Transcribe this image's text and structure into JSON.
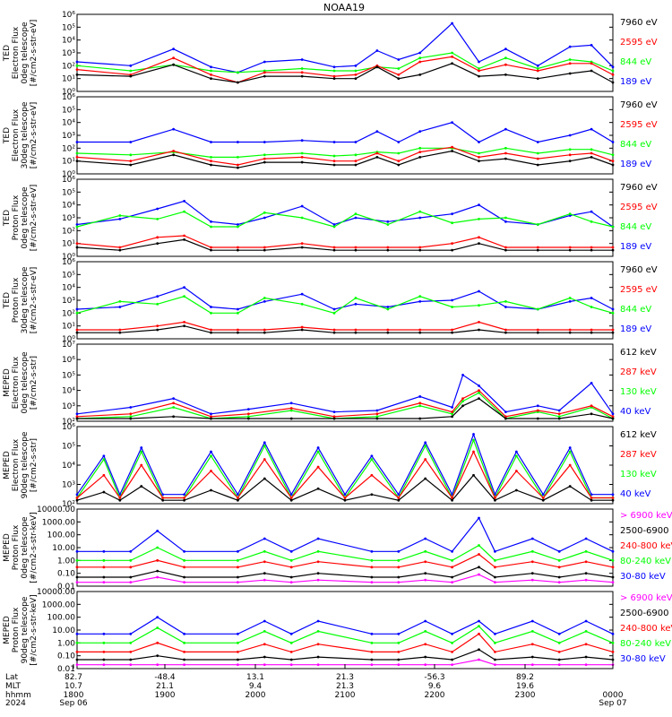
{
  "title": "NOAA19",
  "colors": {
    "black": "#000000",
    "red": "#ff0000",
    "green": "#00ff00",
    "blue": "#0000ff",
    "magenta": "#ff00ff"
  },
  "chart_data": [
    {
      "type": "line",
      "ylabel": [
        "TED",
        "Electron Flux",
        "0deg telescope",
        "[#/cm2-s-str-eV]"
      ],
      "yscale": "log",
      "yticks": [
        "10⁰",
        "10¹",
        "10²",
        "10³",
        "10⁴",
        "10⁵",
        "10⁶"
      ],
      "ylim": [
        1,
        1000000
      ],
      "series": [
        {
          "name": "7960 eV",
          "color": "black"
        },
        {
          "name": "2595 eV",
          "color": "red"
        },
        {
          "name": "844 eV",
          "color": "green"
        },
        {
          "name": "189 eV",
          "color": "blue"
        }
      ],
      "x": [
        0,
        0.1,
        0.18,
        0.25,
        0.3,
        0.35,
        0.42,
        0.48,
        0.52,
        0.56,
        0.6,
        0.64,
        0.7,
        0.75,
        0.8,
        0.86,
        0.92,
        0.96,
        1
      ],
      "values": [
        [
          20,
          15,
          120,
          10,
          5,
          15,
          15,
          10,
          10,
          80,
          10,
          20,
          150,
          15,
          20,
          10,
          25,
          40,
          5
        ],
        [
          50,
          20,
          400,
          20,
          5,
          30,
          30,
          15,
          20,
          100,
          20,
          200,
          500,
          40,
          120,
          40,
          150,
          150,
          20
        ],
        [
          100,
          40,
          120,
          40,
          30,
          40,
          60,
          40,
          40,
          80,
          60,
          400,
          1000,
          60,
          400,
          60,
          300,
          200,
          40
        ],
        [
          200,
          100,
          2000,
          80,
          30,
          200,
          300,
          80,
          100,
          1500,
          300,
          1000,
          200000,
          200,
          2000,
          100,
          3000,
          4000,
          80
        ]
      ]
    },
    {
      "type": "line",
      "ylabel": [
        "TED",
        "Electron Flux",
        "30deg telescope",
        "[#/cm2-s-str-eV]"
      ],
      "yscale": "log",
      "yticks": [
        "10⁰",
        "10¹",
        "10²",
        "10³",
        "10⁴",
        "10⁵",
        "10⁶"
      ],
      "ylim": [
        1,
        1000000
      ],
      "series": [
        {
          "name": "7960 eV",
          "color": "black"
        },
        {
          "name": "2595 eV",
          "color": "red"
        },
        {
          "name": "844 eV",
          "color": "green"
        },
        {
          "name": "189 eV",
          "color": "blue"
        }
      ],
      "x": [
        0,
        0.1,
        0.18,
        0.25,
        0.3,
        0.35,
        0.42,
        0.48,
        0.52,
        0.56,
        0.6,
        0.64,
        0.7,
        0.75,
        0.8,
        0.86,
        0.92,
        0.96,
        1
      ],
      "values": [
        [
          10,
          5,
          30,
          5,
          3,
          8,
          8,
          5,
          5,
          20,
          5,
          20,
          60,
          10,
          15,
          5,
          10,
          20,
          5
        ],
        [
          20,
          10,
          60,
          10,
          5,
          15,
          20,
          10,
          10,
          40,
          10,
          50,
          120,
          20,
          40,
          15,
          30,
          40,
          10
        ],
        [
          40,
          30,
          50,
          20,
          20,
          30,
          40,
          25,
          30,
          50,
          40,
          100,
          100,
          40,
          100,
          40,
          80,
          80,
          30
        ],
        [
          300,
          300,
          3000,
          300,
          300,
          300,
          400,
          300,
          300,
          2000,
          300,
          2000,
          10000,
          300,
          3000,
          300,
          1000,
          3000,
          300
        ]
      ]
    },
    {
      "type": "line",
      "ylabel": [
        "TED",
        "Proton Flux",
        "0deg telescope",
        "[#/cm2-s-str-eV]"
      ],
      "yscale": "log",
      "yticks": [
        "10⁰",
        "10¹",
        "10²",
        "10³",
        "10⁴",
        "10⁵",
        "10⁶"
      ],
      "ylim": [
        1,
        1000000
      ],
      "series": [
        {
          "name": "7960 eV",
          "color": "black"
        },
        {
          "name": "2595 eV",
          "color": "red"
        },
        {
          "name": "844 eV",
          "color": "green"
        },
        {
          "name": "189 eV",
          "color": "blue"
        }
      ],
      "x": [
        0,
        0.08,
        0.15,
        0.2,
        0.25,
        0.3,
        0.35,
        0.42,
        0.48,
        0.52,
        0.58,
        0.64,
        0.7,
        0.75,
        0.8,
        0.86,
        0.92,
        0.96,
        1
      ],
      "values": [
        [
          5,
          3,
          10,
          20,
          3,
          3,
          3,
          5,
          3,
          3,
          3,
          3,
          3,
          10,
          3,
          3,
          3,
          3,
          3
        ],
        [
          10,
          5,
          30,
          40,
          5,
          5,
          5,
          10,
          5,
          5,
          5,
          5,
          10,
          30,
          5,
          5,
          5,
          5,
          5
        ],
        [
          200,
          1500,
          800,
          3000,
          200,
          200,
          2500,
          1000,
          200,
          2000,
          300,
          3000,
          400,
          800,
          1000,
          300,
          2000,
          500,
          200
        ],
        [
          300,
          800,
          5000,
          20000,
          500,
          300,
          1000,
          8000,
          300,
          1000,
          500,
          1000,
          2000,
          10000,
          500,
          300,
          1500,
          3000,
          200
        ]
      ]
    },
    {
      "type": "line",
      "ylabel": [
        "TED",
        "Proton Flux",
        "30deg telescope",
        "[#/cm2-s-str-eV]"
      ],
      "yscale": "log",
      "yticks": [
        "10⁰",
        "10¹",
        "10²",
        "10³",
        "10⁴",
        "10⁵",
        "10⁶"
      ],
      "ylim": [
        1,
        1000000
      ],
      "series": [
        {
          "name": "7960 eV",
          "color": "black"
        },
        {
          "name": "2595 eV",
          "color": "red"
        },
        {
          "name": "844 eV",
          "color": "green"
        },
        {
          "name": "189 eV",
          "color": "blue"
        }
      ],
      "x": [
        0,
        0.08,
        0.15,
        0.2,
        0.25,
        0.3,
        0.35,
        0.42,
        0.48,
        0.52,
        0.58,
        0.64,
        0.7,
        0.75,
        0.8,
        0.86,
        0.92,
        0.96,
        1
      ],
      "values": [
        [
          3,
          3,
          5,
          10,
          3,
          3,
          3,
          5,
          3,
          3,
          3,
          3,
          3,
          5,
          3,
          3,
          3,
          3,
          3
        ],
        [
          5,
          5,
          10,
          20,
          5,
          5,
          5,
          8,
          5,
          5,
          5,
          5,
          5,
          20,
          5,
          5,
          5,
          5,
          5
        ],
        [
          100,
          800,
          500,
          2000,
          100,
          100,
          1500,
          500,
          100,
          1500,
          200,
          2000,
          300,
          400,
          800,
          200,
          1500,
          300,
          100
        ],
        [
          200,
          300,
          2000,
          10000,
          300,
          200,
          800,
          3000,
          200,
          500,
          300,
          800,
          1000,
          5000,
          300,
          200,
          800,
          1500,
          200
        ]
      ]
    },
    {
      "type": "line",
      "ylabel": [
        "MEPED",
        "Electron Flux",
        "0deg telescope",
        "[#/cm2-s-str]"
      ],
      "yscale": "log",
      "yticks": [
        "10²",
        "10³",
        "10⁴",
        "10⁵",
        "10⁶",
        "10⁷"
      ],
      "ylim": [
        100,
        10000000
      ],
      "series": [
        {
          "name": "612 keV",
          "color": "black"
        },
        {
          "name": "287 keV",
          "color": "red"
        },
        {
          "name": "130 keV",
          "color": "green"
        },
        {
          "name": "40 keV",
          "color": "blue"
        }
      ],
      "x": [
        0,
        0.1,
        0.18,
        0.25,
        0.32,
        0.4,
        0.48,
        0.56,
        0.64,
        0.7,
        0.72,
        0.75,
        0.8,
        0.86,
        0.9,
        0.96,
        1
      ],
      "values": [
        [
          150,
          150,
          200,
          150,
          150,
          150,
          150,
          150,
          150,
          200,
          1000,
          3000,
          150,
          150,
          150,
          300,
          150
        ],
        [
          200,
          300,
          1500,
          200,
          300,
          700,
          200,
          300,
          1500,
          400,
          3000,
          10000,
          200,
          500,
          300,
          1000,
          200
        ],
        [
          150,
          200,
          800,
          150,
          200,
          500,
          150,
          200,
          1000,
          300,
          2000,
          7000,
          150,
          400,
          200,
          800,
          150
        ],
        [
          300,
          800,
          3000,
          300,
          600,
          1500,
          400,
          500,
          4000,
          800,
          100000,
          20000,
          400,
          1000,
          500,
          30000,
          300
        ]
      ]
    },
    {
      "type": "line",
      "ylabel": [
        "MEPED",
        "Electron Flux",
        "90deg telescope",
        "[#/cm2-s-str]"
      ],
      "yscale": "log",
      "yticks": [
        "10²",
        "10³",
        "10⁴",
        "10⁵",
        "10⁶"
      ],
      "ylim": [
        100,
        1000000
      ],
      "series": [
        {
          "name": "612 keV",
          "color": "black"
        },
        {
          "name": "287 keV",
          "color": "red"
        },
        {
          "name": "130 keV",
          "color": "green"
        },
        {
          "name": "40 keV",
          "color": "blue"
        }
      ],
      "x": [
        0,
        0.05,
        0.08,
        0.12,
        0.16,
        0.2,
        0.25,
        0.3,
        0.35,
        0.4,
        0.45,
        0.5,
        0.55,
        0.6,
        0.65,
        0.7,
        0.74,
        0.78,
        0.82,
        0.87,
        0.92,
        0.96,
        1
      ],
      "values": [
        [
          150,
          400,
          150,
          800,
          150,
          150,
          500,
          150,
          2000,
          150,
          600,
          150,
          300,
          150,
          2000,
          150,
          3000,
          150,
          500,
          150,
          800,
          150,
          150
        ],
        [
          200,
          3000,
          200,
          10000,
          200,
          200,
          5000,
          200,
          20000,
          200,
          8000,
          200,
          3000,
          200,
          20000,
          200,
          50000,
          200,
          5000,
          200,
          10000,
          200,
          200
        ],
        [
          200,
          20000,
          200,
          50000,
          200,
          200,
          30000,
          200,
          100000,
          200,
          50000,
          200,
          20000,
          200,
          100000,
          200,
          200000,
          200,
          30000,
          200,
          50000,
          200,
          200
        ],
        [
          300,
          30000,
          300,
          80000,
          300,
          300,
          50000,
          300,
          150000,
          300,
          80000,
          300,
          30000,
          300,
          150000,
          300,
          400000,
          300,
          50000,
          300,
          80000,
          300,
          300
        ]
      ]
    },
    {
      "type": "line",
      "ylabel": [
        "MEPED",
        "Proton Flux",
        "0deg telescope",
        "[#/cm2-s-str-keV]"
      ],
      "yscale": "log",
      "yticks": [
        "0.01",
        "0.10",
        "1.00",
        "10.00",
        "100.00",
        "1000.00",
        "10000.00"
      ],
      "ylim": [
        0.01,
        10000
      ],
      "series": [
        {
          "name": "> 6900 keV",
          "color": "magenta"
        },
        {
          "name": "2500-6900",
          "color": "black"
        },
        {
          "name": "240-800 keV",
          "color": "red"
        },
        {
          "name": "80-240 keV",
          "color": "green"
        },
        {
          "name": "30-80 keV",
          "color": "blue"
        }
      ],
      "x": [
        0,
        0.05,
        0.1,
        0.15,
        0.2,
        0.3,
        0.35,
        0.4,
        0.45,
        0.55,
        0.6,
        0.65,
        0.7,
        0.75,
        0.78,
        0.85,
        0.9,
        0.95,
        1
      ],
      "values": [
        [
          0.02,
          0.02,
          0.02,
          0.05,
          0.02,
          0.02,
          0.03,
          0.02,
          0.03,
          0.02,
          0.02,
          0.03,
          0.02,
          0.08,
          0.02,
          0.03,
          0.02,
          0.03,
          0.02
        ],
        [
          0.05,
          0.05,
          0.05,
          0.15,
          0.05,
          0.05,
          0.1,
          0.05,
          0.1,
          0.05,
          0.05,
          0.1,
          0.05,
          0.3,
          0.05,
          0.1,
          0.05,
          0.1,
          0.05
        ],
        [
          0.3,
          0.3,
          0.3,
          1,
          0.3,
          0.3,
          0.8,
          0.3,
          0.8,
          0.3,
          0.3,
          0.8,
          0.3,
          3,
          0.3,
          0.8,
          0.3,
          0.8,
          0.3
        ],
        [
          1,
          1,
          1,
          10,
          1,
          1,
          5,
          1,
          5,
          1,
          1,
          5,
          1,
          15,
          1,
          5,
          1,
          5,
          1
        ],
        [
          5,
          5,
          5,
          200,
          5,
          5,
          50,
          5,
          50,
          5,
          5,
          50,
          5,
          2000,
          5,
          50,
          5,
          50,
          5
        ]
      ]
    },
    {
      "type": "line",
      "ylabel": [
        "MEPED",
        "Proton Flux",
        "90deg telescope",
        "[#/cm2-s-str-keV]"
      ],
      "yscale": "log",
      "yticks": [
        "0.01",
        "0.10",
        "1.00",
        "10.00",
        "100.00",
        "1000.00",
        "10000.00"
      ],
      "ylim": [
        0.01,
        10000
      ],
      "series": [
        {
          "name": "> 6900 keV",
          "color": "magenta"
        },
        {
          "name": "2500-6900",
          "color": "black"
        },
        {
          "name": "240-800 keV",
          "color": "red"
        },
        {
          "name": "80-240 keV",
          "color": "green"
        },
        {
          "name": "30-80 keV",
          "color": "blue"
        }
      ],
      "x": [
        0,
        0.05,
        0.1,
        0.15,
        0.2,
        0.3,
        0.35,
        0.4,
        0.45,
        0.55,
        0.6,
        0.65,
        0.7,
        0.75,
        0.78,
        0.85,
        0.9,
        0.95,
        1
      ],
      "values": [
        [
          0.02,
          0.02,
          0.02,
          0.02,
          0.02,
          0.02,
          0.02,
          0.02,
          0.02,
          0.02,
          0.02,
          0.02,
          0.02,
          0.05,
          0.02,
          0.02,
          0.02,
          0.02,
          0.02
        ],
        [
          0.05,
          0.05,
          0.05,
          0.1,
          0.05,
          0.05,
          0.08,
          0.05,
          0.08,
          0.05,
          0.05,
          0.08,
          0.05,
          0.3,
          0.05,
          0.08,
          0.05,
          0.08,
          0.05
        ],
        [
          0.2,
          0.2,
          0.2,
          1,
          0.2,
          0.2,
          0.8,
          0.2,
          0.8,
          0.2,
          0.2,
          0.8,
          0.2,
          5,
          0.2,
          0.8,
          0.2,
          0.8,
          0.2
        ],
        [
          1,
          1,
          1,
          15,
          1,
          1,
          8,
          1,
          8,
          1,
          1,
          8,
          1,
          20,
          1,
          8,
          1,
          8,
          1
        ],
        [
          5,
          5,
          5,
          100,
          5,
          5,
          50,
          5,
          50,
          5,
          5,
          50,
          5,
          50,
          5,
          50,
          5,
          50,
          5
        ]
      ]
    }
  ],
  "xaxis": {
    "rows": [
      {
        "label": "Lat",
        "ticks": [
          "82.7",
          "-48.4",
          "13.1",
          "21.3",
          "-56.3",
          "89.2"
        ]
      },
      {
        "label": "MLT",
        "ticks": [
          "10.7",
          "21.1",
          "9.4",
          "21.3",
          "9.6",
          "19.6"
        ]
      },
      {
        "label": "hhmm",
        "ticks": [
          "1800",
          "1900",
          "2000",
          "2100",
          "2200",
          "2300",
          "0000"
        ]
      },
      {
        "label": "2024",
        "ticks": [
          "Sep 06",
          "Sep 07"
        ]
      }
    ]
  }
}
